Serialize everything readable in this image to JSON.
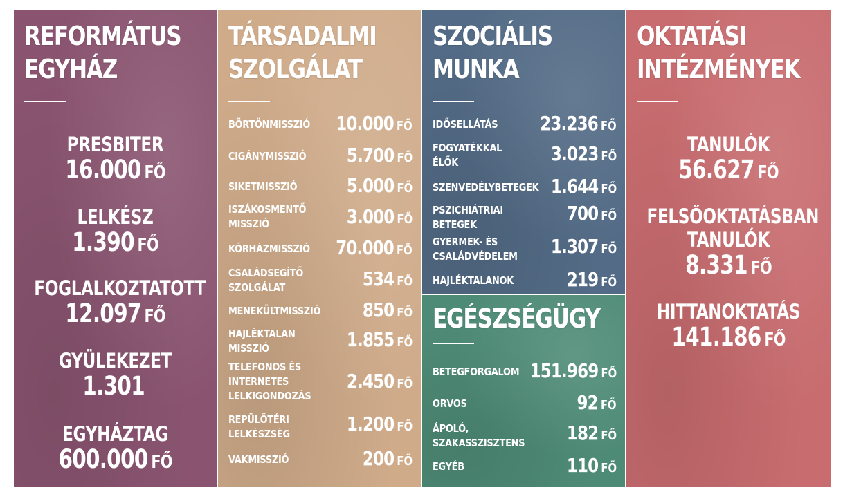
{
  "reformatus": {
    "title": "REFORMÁTUS\nEGYHÁZ",
    "stats": [
      {
        "label": "PRESBITER",
        "value": "16.000",
        "unit": "FŐ"
      },
      {
        "label": "LELKÉSZ",
        "value": "1.390",
        "unit": "FŐ"
      },
      {
        "label": "FOGLALKOZTATOTT",
        "value": "12.097",
        "unit": "FŐ"
      },
      {
        "label": "GYÜLEKEZET",
        "value": "1.301",
        "unit": ""
      },
      {
        "label": "EGYHÁZTAG",
        "value": "600.000",
        "unit": "FŐ"
      }
    ]
  },
  "tarsadalmi": {
    "title": "TÁRSADALMI\nSZOLGÁLAT",
    "rows": [
      {
        "label": "BÖRTÖNMISSZIÓ",
        "value": "10.000",
        "unit": "FŐ"
      },
      {
        "label": "CIGÁNYMISSZIÓ",
        "value": "5.700",
        "unit": "FŐ"
      },
      {
        "label": "SIKETMISSZIÓ",
        "value": "5.000",
        "unit": "FŐ"
      },
      {
        "label": "ISZÁKOSMENTŐ\nMISSZIÓ",
        "value": "3.000",
        "unit": "FŐ"
      },
      {
        "label": "KÓRHÁZMISSZIÓ",
        "value": "70.000",
        "unit": "FŐ"
      },
      {
        "label": "CSALÁDSEGÍTŐ\nSZOLGÁLAT",
        "value": "534",
        "unit": "FŐ"
      },
      {
        "label": "MENEKÜLTMISSZIÓ",
        "value": "850",
        "unit": "FŐ"
      },
      {
        "label": "HAJLÉKTALAN\nMISSZIÓ",
        "value": "1.855",
        "unit": "FŐ"
      },
      {
        "label": "TELEFONOS ÉS\nINTERNETES\nLELKIGONDOZÁS",
        "value": "2.450",
        "unit": "FŐ"
      },
      {
        "label": "REPÜLŐTÉRI\nLELKÉSZSÉG",
        "value": "1.200",
        "unit": "FŐ"
      },
      {
        "label": "VAKMISSZIÓ",
        "value": "200",
        "unit": "FŐ"
      }
    ]
  },
  "szocialis": {
    "title": "SZOCIÁLIS\nMUNKA",
    "rows": [
      {
        "label": "IDŐSELLÁTÁS",
        "value": "23.236",
        "unit": "FŐ"
      },
      {
        "label": "FOGYATÉKKAL\nÉLŐK",
        "value": "3.023",
        "unit": "FŐ"
      },
      {
        "label": "SZENVEDÉLYBETEGEK",
        "value": "1.644",
        "unit": "FŐ"
      },
      {
        "label": "PSZICHIÁTRIAI\nBETEGEK",
        "value": "700",
        "unit": "FŐ"
      },
      {
        "label": "GYERMEK- ÉS\nCSALÁDVÉDELEM",
        "value": "1.307",
        "unit": "FŐ"
      },
      {
        "label": "HAJLÉKTALANOK",
        "value": "219",
        "unit": "FŐ"
      }
    ]
  },
  "egeszsegugy": {
    "title": "EGÉSZSÉGÜGY",
    "rows": [
      {
        "label": "BETEGFORGALOM",
        "value": "151.969",
        "unit": "FŐ"
      },
      {
        "label": "ORVOS",
        "value": "92",
        "unit": "FŐ"
      },
      {
        "label": "ÁPOLÓ,\nSZAKASSZISZTENS",
        "value": "182",
        "unit": "FŐ"
      },
      {
        "label": "EGYÉB",
        "value": "110",
        "unit": "FŐ"
      }
    ]
  },
  "oktatasi": {
    "title": "OKTATÁSI\nINTÉZMÉNYEK",
    "stats": [
      {
        "label": "TANULÓK",
        "value": "56.627",
        "unit": "FŐ"
      },
      {
        "label": "FELSŐOKTATÁSBAN\nTANULÓK",
        "value": "8.331",
        "unit": "FŐ"
      },
      {
        "label": "HITTANOKTATÁS",
        "value": "141.186",
        "unit": "FŐ"
      }
    ]
  },
  "colors": {
    "reformatus": "#8a5470",
    "tarsadalmi": "#cfab8a",
    "szocialis": "#536b86",
    "egeszsegugy": "#4e8b77",
    "oktatasi": "#c86c6f"
  }
}
